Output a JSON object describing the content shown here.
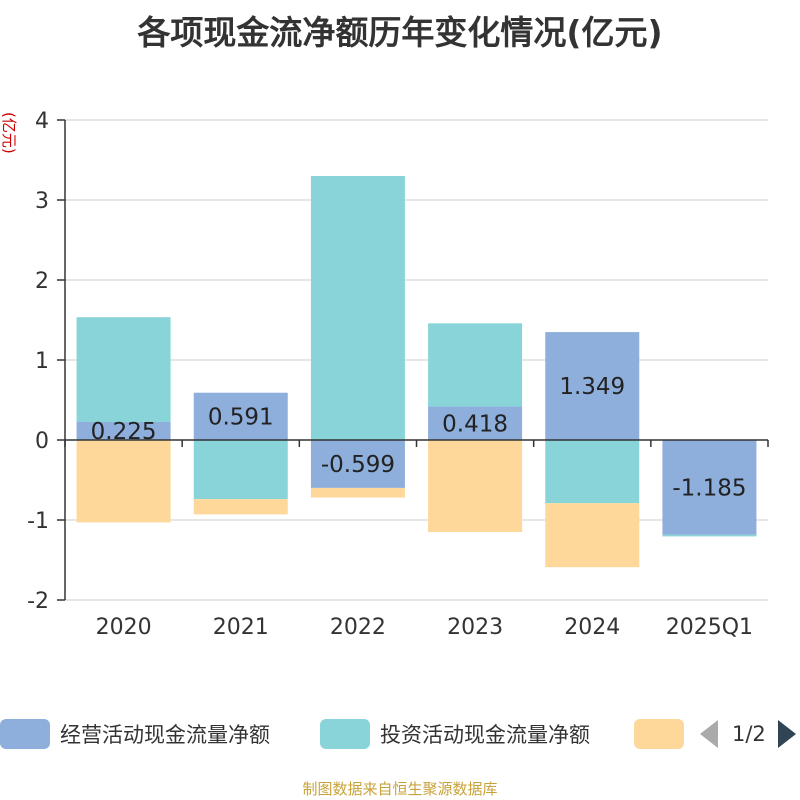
{
  "title": "各项现金流净额历年变化情况(亿元)",
  "unit_label": "(亿元)",
  "source": "制图数据来自恒生聚源数据库",
  "legend": {
    "items": [
      {
        "label": "经营活动现金流量净额",
        "color": "#8eaedc"
      },
      {
        "label": "投资活动现金流量净额",
        "color": "#88d4d8"
      },
      {
        "label": "",
        "color": "#fdd89a"
      }
    ],
    "page": "1/2"
  },
  "chart_data": {
    "type": "bar",
    "stacked": true,
    "categories": [
      "2020",
      "2021",
      "2022",
      "2023",
      "2024",
      "2025Q1"
    ],
    "ylim": [
      -2,
      4
    ],
    "yticks": [
      -2,
      -1,
      0,
      1,
      2,
      3,
      4
    ],
    "grid": true,
    "legend_position": "bottom",
    "series": [
      {
        "name": "经营活动现金流量净额",
        "color": "#8eaedc",
        "values": [
          0.225,
          0.591,
          -0.599,
          0.418,
          1.349,
          -1.185
        ],
        "labels": [
          "0.225",
          "0.591",
          "-0.599",
          "0.418",
          "1.349",
          "-1.185"
        ]
      },
      {
        "name": "投资活动现金流量净额",
        "color": "#88d4d8",
        "values": [
          1.31,
          -0.74,
          3.3,
          1.04,
          -0.79,
          -0.02
        ]
      },
      {
        "color": "#fdd89a",
        "values": [
          -1.03,
          -0.19,
          -0.12,
          -1.15,
          -0.8,
          0
        ]
      }
    ]
  }
}
